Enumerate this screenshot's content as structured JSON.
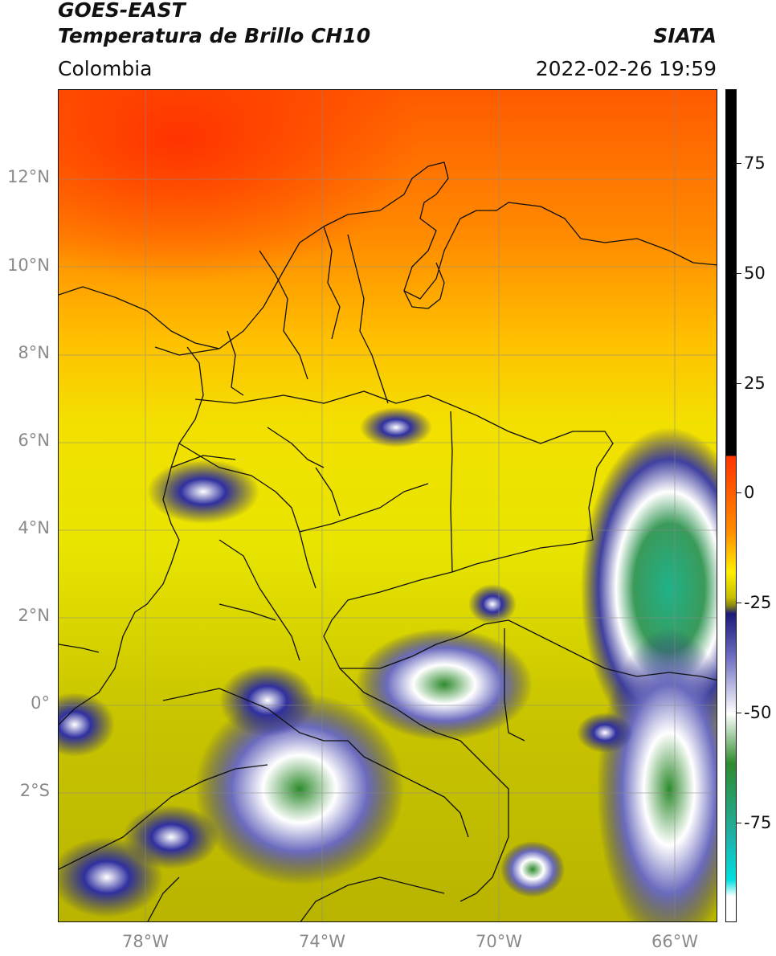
{
  "header": {
    "title": "GOES-EAST",
    "subtitle": "Temperatura de Brillo CH10",
    "organization": "SIATA",
    "region": "Colombia",
    "datetime": "2022-02-26 19:59"
  },
  "map": {
    "lat_labels": [
      "12°N",
      "10°N",
      "8°N",
      "6°N",
      "4°N",
      "2°N",
      "0°",
      "2°S"
    ],
    "lon_labels": [
      "78°W",
      "74°W",
      "70°W",
      "66°W"
    ]
  },
  "colorbar": {
    "tick_labels": [
      "75",
      "50",
      "25",
      "0",
      "-25",
      "-50",
      "-75"
    ],
    "colors": {
      "hot": "#ff3300",
      "warm": "#ff8c00",
      "mild": "#ffee00",
      "cool": "#c8c000",
      "olive": "#8a8a10",
      "deep_blue": "#1a1a7a",
      "white": "#ffffff",
      "green": "#2e8b2e",
      "teal": "#20b2aa",
      "cyan": "#00e0e0",
      "black": "#000000"
    }
  }
}
